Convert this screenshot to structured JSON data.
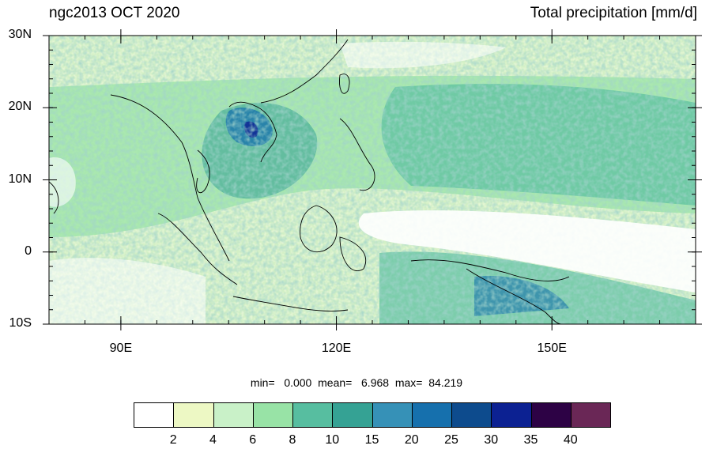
{
  "title_left": "ngc2013 OCT 2020",
  "title_right": "Total precipitation [mm/d]",
  "y_ticks": [
    {
      "value": 30,
      "label": "30N"
    },
    {
      "value": 20,
      "label": "20N"
    },
    {
      "value": 10,
      "label": "10N"
    },
    {
      "value": 0,
      "label": "0"
    },
    {
      "value": -10,
      "label": "10S"
    }
  ],
  "x_ticks": [
    {
      "value": 90,
      "label": "90E"
    },
    {
      "value": 120,
      "label": "120E"
    },
    {
      "value": 150,
      "label": "150E"
    }
  ],
  "extent": {
    "lon_min": 80,
    "lon_max": 170,
    "lat_min": -10,
    "lat_max": 30
  },
  "stats": {
    "min_label": "min=",
    "min_value": "0.000",
    "mean_label": "mean=",
    "mean_value": "6.968",
    "max_label": "max=",
    "max_value": "84.219"
  },
  "legend": {
    "colors": [
      "#ffffff",
      "#edf8c4",
      "#c9f1c8",
      "#98e3a6",
      "#57bea0",
      "#35a294",
      "#3691b7",
      "#1670ad",
      "#0d4b8d",
      "#0c2192",
      "#2d0245",
      "#6a2756"
    ],
    "labels": [
      "2",
      "4",
      "6",
      "8",
      "10",
      "15",
      "20",
      "25",
      "30",
      "35",
      "40"
    ]
  }
}
